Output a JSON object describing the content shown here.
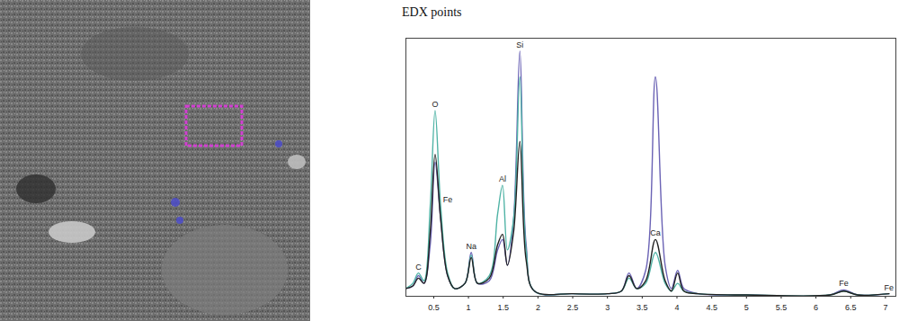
{
  "chart_data": {
    "type": "line",
    "title": "EDX points",
    "x": [
      0.1,
      0.2,
      0.28,
      0.36,
      0.45,
      0.52,
      0.6,
      0.7,
      0.8,
      0.95,
      1.04,
      1.13,
      1.3,
      1.42,
      1.49,
      1.56,
      1.65,
      1.74,
      1.83,
      1.95,
      2.5,
      3.0,
      3.2,
      3.31,
      3.42,
      3.55,
      3.69,
      3.83,
      3.92,
      4.01,
      4.1,
      4.3,
      5.0,
      6.2,
      6.4,
      6.6,
      7.05
    ],
    "series": [
      {
        "color": "#6b63b5",
        "values": [
          3,
          4,
          8,
          5,
          20,
          52,
          30,
          8,
          3,
          5,
          17,
          5,
          6,
          18,
          22,
          12,
          30,
          95,
          20,
          2,
          1,
          1,
          2,
          9,
          3,
          10,
          85,
          12,
          3,
          10,
          3,
          1,
          0.5,
          0.5,
          2.5,
          0.5,
          1
        ]
      },
      {
        "color": "#4fb3a5",
        "values": [
          3,
          5,
          9,
          6,
          35,
          72,
          35,
          9,
          3,
          5,
          16,
          5,
          8,
          32,
          43,
          18,
          30,
          85,
          18,
          2,
          1,
          1,
          2,
          7,
          3,
          5,
          17,
          5,
          2,
          5,
          2,
          1,
          0.5,
          0.5,
          2,
          0.5,
          1
        ]
      },
      {
        "color": "#222222",
        "values": [
          3,
          4,
          7,
          5,
          25,
          55,
          30,
          8,
          3,
          5,
          15,
          5,
          7,
          20,
          24,
          12,
          25,
          60,
          14,
          2,
          1,
          1,
          2,
          8,
          3,
          6,
          22,
          6,
          2,
          9,
          2,
          1,
          0.5,
          0.5,
          2,
          0.5,
          1
        ]
      }
    ],
    "annotations": [
      {
        "text": "C",
        "x": 0.28,
        "y": 9
      },
      {
        "text": "O",
        "x": 0.52,
        "y": 72
      },
      {
        "text": "Fe",
        "x": 0.7,
        "y": 35
      },
      {
        "text": "Na",
        "x": 1.04,
        "y": 17
      },
      {
        "text": "Al",
        "x": 1.49,
        "y": 43
      },
      {
        "text": "Si",
        "x": 1.74,
        "y": 95
      },
      {
        "text": "Ca",
        "x": 3.69,
        "y": 22
      },
      {
        "text": "Fe",
        "x": 6.4,
        "y": 2.5
      },
      {
        "text": "Fe",
        "x": 7.05,
        "y": 1
      }
    ],
    "xlim": [
      0.1,
      7.15
    ],
    "xticks": [
      0.5,
      1,
      1.5,
      2,
      2.5,
      3,
      3.5,
      4,
      4.5,
      5,
      5.5,
      6,
      6.5,
      7
    ],
    "ylim": [
      0,
      100
    ],
    "tick_labels": "x",
    "grid": false
  }
}
